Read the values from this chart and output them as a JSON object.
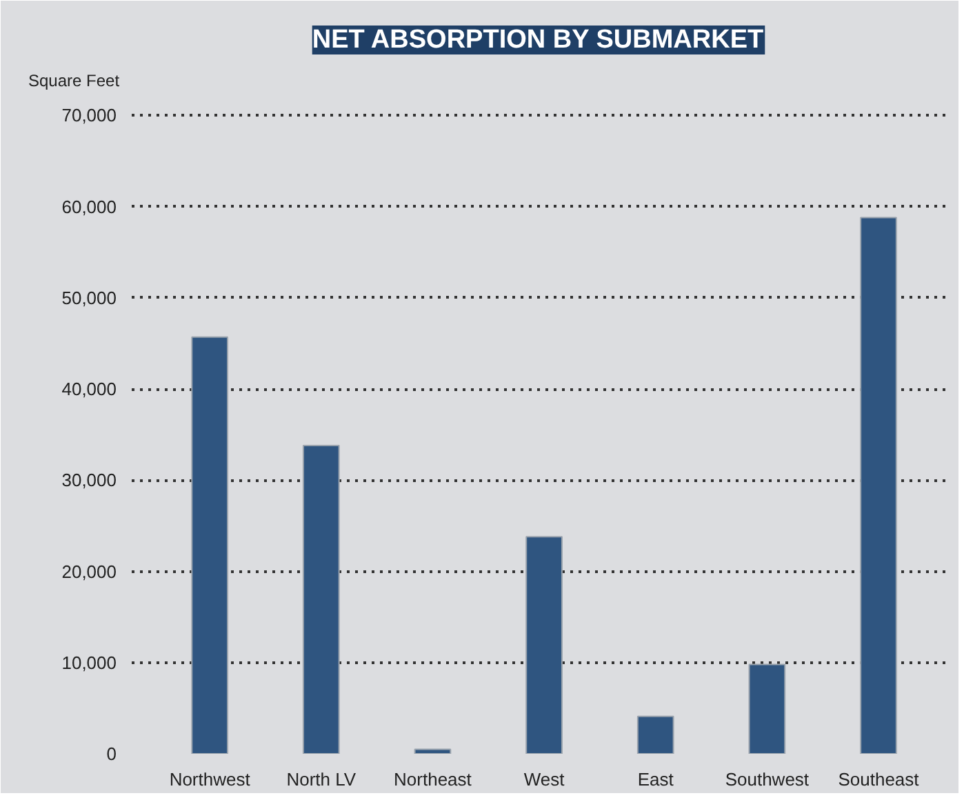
{
  "chart_data": {
    "type": "bar",
    "title": "NET ABSORPTION BY SUBMARKET",
    "ylabel": "Square Feet",
    "categories": [
      "Northwest",
      "North LV",
      "Northeast",
      "West",
      "East",
      "Southwest",
      "Southeast"
    ],
    "values": [
      45700,
      33800,
      500,
      23800,
      4100,
      9800,
      58800
    ],
    "color": "#2f5580",
    "ylim": [
      0,
      72000
    ],
    "yticks": [
      {
        "value": 0,
        "label": "0"
      },
      {
        "value": 10000,
        "label": "10,000"
      },
      {
        "value": 20000,
        "label": "20,000"
      },
      {
        "value": 30000,
        "label": "30,000"
      },
      {
        "value": 40000,
        "label": "40,000"
      },
      {
        "value": 50000,
        "label": "50,000"
      },
      {
        "value": 60000,
        "label": "60,000"
      },
      {
        "value": 70000,
        "label": "70,000"
      }
    ],
    "grid": "y"
  }
}
